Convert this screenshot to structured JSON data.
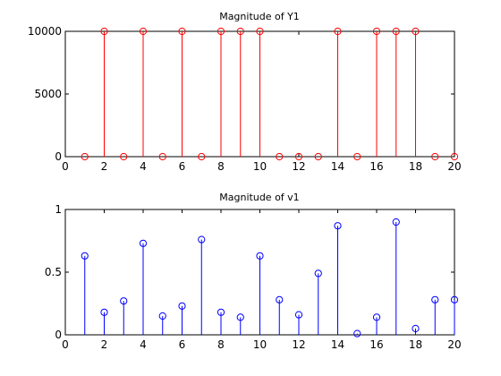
{
  "chart_data": [
    {
      "type": "stem",
      "title": "Magnitude of Y1",
      "xlabel": "",
      "ylabel": "",
      "xlim": [
        0,
        20
      ],
      "ylim": [
        0,
        10000
      ],
      "xticks": [
        0,
        2,
        4,
        6,
        8,
        10,
        12,
        14,
        16,
        18,
        20
      ],
      "yticks": [
        0,
        5000,
        10000
      ],
      "grid": false,
      "color": "#ff0000",
      "x": [
        1,
        2,
        3,
        4,
        5,
        6,
        7,
        8,
        9,
        10,
        11,
        12,
        13,
        14,
        15,
        16,
        17,
        18,
        19,
        20
      ],
      "values": [
        0,
        10000,
        0,
        10000,
        0,
        10000,
        0,
        10000,
        10000,
        10000,
        0,
        0,
        0,
        10000,
        0,
        10000,
        10000,
        10000,
        0,
        0
      ]
    },
    {
      "type": "stem",
      "title": "Magnitude of v1",
      "xlabel": "",
      "ylabel": "",
      "xlim": [
        0,
        20
      ],
      "ylim": [
        0,
        1
      ],
      "xticks": [
        0,
        2,
        4,
        6,
        8,
        10,
        12,
        14,
        16,
        18,
        20
      ],
      "yticks": [
        0,
        0.5,
        1
      ],
      "grid": false,
      "color": "#0000ff",
      "x": [
        1,
        2,
        3,
        4,
        5,
        6,
        7,
        8,
        9,
        10,
        11,
        12,
        13,
        14,
        15,
        16,
        17,
        18,
        19,
        20
      ],
      "values": [
        0.63,
        0.18,
        0.27,
        0.73,
        0.15,
        0.23,
        0.76,
        0.18,
        0.14,
        0.63,
        0.28,
        0.16,
        0.49,
        0.87,
        0.01,
        0.14,
        0.9,
        0.05,
        0.28,
        0.28
      ]
    }
  ]
}
